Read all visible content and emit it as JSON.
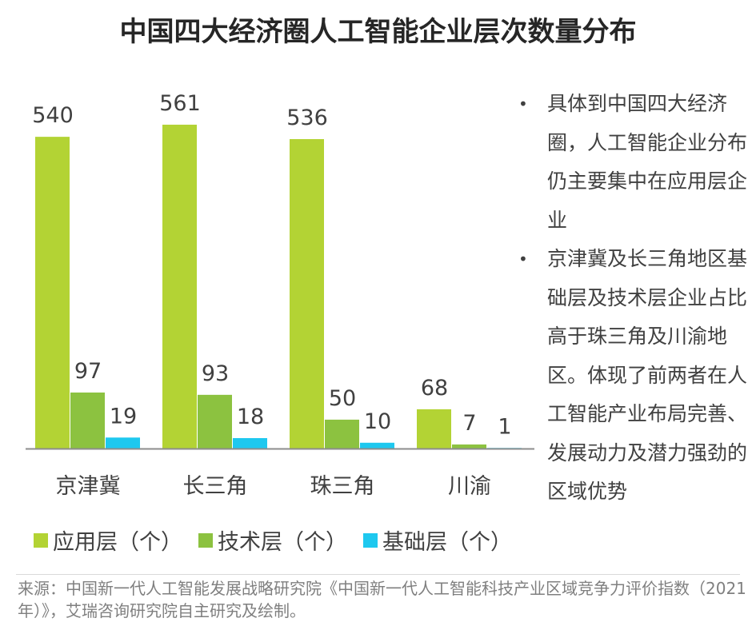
{
  "title": "中国四大经济圈人工智能企业层次数量分布",
  "chart_data": {
    "type": "bar",
    "title": "中国四大经济圈人工智能企业层次数量分布",
    "categories": [
      "京津冀",
      "长三角",
      "珠三角",
      "川渝"
    ],
    "series": [
      {
        "name": "应用层（个）",
        "values": [
          540,
          561,
          536,
          68
        ],
        "color": "#b3d334"
      },
      {
        "name": "技术层（个）",
        "values": [
          97,
          93,
          50,
          7
        ],
        "color": "#8cc240"
      },
      {
        "name": "基础层（个）",
        "values": [
          19,
          18,
          10,
          1
        ],
        "color": "#1ec8ef"
      }
    ],
    "ylim": [
      0,
      600
    ],
    "grid": false,
    "data_labels": true,
    "legend": "bottom"
  },
  "notes": [
    "具体到中国四大经济圈，人工智能企业分布仍主要集中在应用层企业",
    "京津冀及长三角地区基础层及技术层企业占比高于珠三角及川渝地区。体现了前两者在人工智能产业布局完善、发展动力及潜力强劲的区域优势"
  ],
  "source": "来源：中国新一代人工智能发展战略研究院《中国新一代人工智能科技产业区域竞争力评价指数（2021年）》，艾瑞咨询研究院自主研究及绘制。"
}
